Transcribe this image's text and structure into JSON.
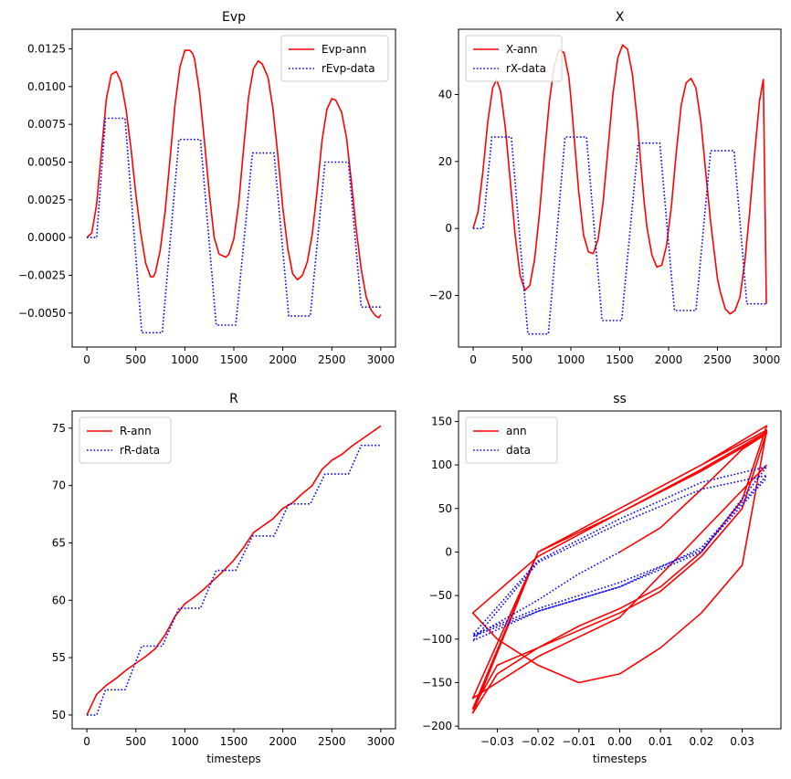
{
  "chart_data": [
    {
      "type": "line",
      "title": "Evp",
      "xlabel": "",
      "ylabel": "",
      "xlim": [
        -150,
        3150
      ],
      "ylim": [
        -0.00725,
        0.0138
      ],
      "xticks": [
        0,
        500,
        1000,
        1500,
        2000,
        2500,
        3000
      ],
      "xtick_labels": [
        "0",
        "500",
        "1000",
        "1500",
        "2000",
        "2500",
        "3000"
      ],
      "yticks": [
        -0.005,
        -0.0025,
        0.0,
        0.0025,
        0.005,
        0.0075,
        0.01,
        0.0125
      ],
      "ytick_labels": [
        "−0.0050",
        "−0.0025",
        "0.0000",
        "0.0025",
        "0.0050",
        "0.0075",
        "0.0100",
        "0.0125"
      ],
      "legend": "top-right",
      "series": [
        {
          "name": "Evp-ann",
          "color": "#ff0000",
          "style": "solid",
          "x": [
            0,
            50,
            100,
            150,
            200,
            250,
            300,
            350,
            400,
            450,
            500,
            550,
            600,
            650,
            680,
            700,
            750,
            800,
            850,
            900,
            950,
            1000,
            1050,
            1080,
            1100,
            1150,
            1200,
            1250,
            1300,
            1350,
            1420,
            1450,
            1500,
            1550,
            1600,
            1650,
            1700,
            1750,
            1790,
            1850,
            1900,
            1950,
            2000,
            2050,
            2100,
            2150,
            2200,
            2250,
            2300,
            2350,
            2400,
            2450,
            2500,
            2540,
            2600,
            2650,
            2700,
            2750,
            2800,
            2850,
            2900,
            2950,
            2980,
            3000
          ],
          "y": [
            0.0,
            0.0003,
            0.0022,
            0.0058,
            0.0092,
            0.0108,
            0.011,
            0.0103,
            0.0085,
            0.0059,
            0.0029,
            0.0003,
            -0.0017,
            -0.0026,
            -0.0026,
            -0.0023,
            -0.0008,
            0.0018,
            0.0053,
            0.0088,
            0.0113,
            0.0124,
            0.0124,
            0.0122,
            0.0118,
            0.0096,
            0.0064,
            0.0029,
            0.0,
            -0.0011,
            -0.0013,
            -0.0011,
            -0.0001,
            0.0023,
            0.0059,
            0.0093,
            0.0112,
            0.0117,
            0.0115,
            0.0106,
            0.0085,
            0.0054,
            0.002,
            -0.0007,
            -0.0024,
            -0.0028,
            -0.0025,
            -0.0016,
            0.0002,
            0.0031,
            0.0064,
            0.0085,
            0.0092,
            0.0091,
            0.0083,
            0.0066,
            0.0037,
            0.0005,
            -0.0021,
            -0.0039,
            -0.0048,
            -0.0052,
            -0.0053,
            -0.0051
          ]
        },
        {
          "name": "rEvp-data",
          "color": "#0000ff",
          "style": "dotted",
          "x": [
            0,
            80,
            100,
            190,
            370,
            390,
            560,
            580,
            750,
            770,
            940,
            960,
            1140,
            1160,
            1320,
            1340,
            1500,
            1520,
            1690,
            1710,
            1890,
            1910,
            2060,
            2080,
            2260,
            2280,
            2430,
            2450,
            2650,
            2670,
            2800,
            2820,
            3000
          ],
          "y": [
            0.0,
            0.0,
            0.0,
            0.0079,
            0.0079,
            0.0079,
            -0.0063,
            -0.0063,
            -0.0063,
            -0.0063,
            0.0065,
            0.0065,
            0.0065,
            0.0065,
            -0.0058,
            -0.0058,
            -0.0058,
            -0.0058,
            0.0056,
            0.0056,
            0.0056,
            0.0056,
            -0.0052,
            -0.0052,
            -0.0052,
            -0.0052,
            0.005,
            0.005,
            0.005,
            0.005,
            -0.0046,
            -0.0046,
            -0.0046
          ]
        }
      ]
    },
    {
      "type": "line",
      "title": "X",
      "xlabel": "",
      "ylabel": "",
      "xlim": [
        -150,
        3150
      ],
      "ylim": [
        -35.4,
        59.5
      ],
      "xticks": [
        0,
        500,
        1000,
        1500,
        2000,
        2500,
        3000
      ],
      "xtick_labels": [
        "0",
        "500",
        "1000",
        "1500",
        "2000",
        "2500",
        "3000"
      ],
      "yticks": [
        -20,
        0,
        20,
        40
      ],
      "ytick_labels": [
        "−20",
        "0",
        "20",
        "40"
      ],
      "legend": "top-left",
      "series": [
        {
          "name": "X-ann",
          "color": "#ff0000",
          "style": "solid",
          "x": [
            0,
            50,
            100,
            150,
            200,
            240,
            280,
            330,
            380,
            430,
            480,
            530,
            580,
            630,
            680,
            730,
            780,
            830,
            880,
            930,
            980,
            1000,
            1040,
            1080,
            1130,
            1180,
            1230,
            1280,
            1330,
            1380,
            1430,
            1480,
            1530,
            1580,
            1630,
            1680,
            1720,
            1750,
            1780,
            1830,
            1880,
            1930,
            1980,
            2030,
            2080,
            2130,
            2180,
            2230,
            2280,
            2330,
            2380,
            2430,
            2480,
            2500,
            2530,
            2580,
            2630,
            2680,
            2730,
            2780,
            2830,
            2880,
            2930,
            2970,
            3000
          ],
          "y": [
            0.0,
            5.0,
            17.0,
            32.0,
            42.0,
            44.5,
            41.0,
            30.0,
            14.0,
            -2.0,
            -14.0,
            -18.5,
            -17.0,
            -9.0,
            5.0,
            22.0,
            38.0,
            48.5,
            53.5,
            52.5,
            45.0,
            39.0,
            25.0,
            11.0,
            -2.0,
            -7.0,
            -7.5,
            -3.0,
            8.0,
            24.0,
            40.0,
            51.0,
            54.8,
            53.5,
            46.0,
            32.0,
            18.0,
            8.0,
            0.0,
            -8.0,
            -11.5,
            -11.0,
            -5.0,
            7.0,
            23.0,
            37.0,
            43.5,
            44.8,
            42.0,
            32.0,
            17.0,
            2.0,
            -10.0,
            -15.0,
            -19.0,
            -24.0,
            -25.5,
            -24.5,
            -20.5,
            -10.0,
            5.0,
            22.0,
            38.0,
            44.5,
            -22.5
          ]
        },
        {
          "name": "rX-data",
          "color": "#0000ff",
          "style": "dotted",
          "x": [
            0,
            80,
            100,
            190,
            370,
            390,
            560,
            580,
            750,
            770,
            940,
            960,
            1140,
            1160,
            1320,
            1340,
            1500,
            1520,
            1690,
            1710,
            1890,
            1910,
            2060,
            2080,
            2260,
            2280,
            2430,
            2450,
            2650,
            2670,
            2800,
            2820,
            3000
          ],
          "y": [
            0.0,
            0.0,
            0.0,
            27.3,
            27.3,
            27.3,
            -31.5,
            -31.5,
            -31.5,
            -31.5,
            27.3,
            27.3,
            27.3,
            27.3,
            -27.5,
            -27.5,
            -27.5,
            -27.5,
            25.5,
            25.5,
            25.5,
            25.5,
            -24.5,
            -24.5,
            -24.5,
            -24.5,
            23.2,
            23.2,
            23.2,
            23.2,
            -22.5,
            -22.5,
            -22.5
          ]
        }
      ]
    },
    {
      "type": "line",
      "title": "R",
      "xlabel": "timesteps",
      "ylabel": "",
      "xlim": [
        -150,
        3150
      ],
      "ylim": [
        48.8,
        76.5
      ],
      "xticks": [
        0,
        500,
        1000,
        1500,
        2000,
        2500,
        3000
      ],
      "xtick_labels": [
        "0",
        "500",
        "1000",
        "1500",
        "2000",
        "2500",
        "3000"
      ],
      "yticks": [
        50,
        55,
        60,
        65,
        70,
        75
      ],
      "ytick_labels": [
        "50",
        "55",
        "60",
        "65",
        "70",
        "75"
      ],
      "legend": "top-left",
      "series": [
        {
          "name": "R-ann",
          "color": "#ff0000",
          "style": "solid",
          "x": [
            0,
            100,
            200,
            300,
            400,
            500,
            600,
            700,
            800,
            900,
            1000,
            1100,
            1200,
            1300,
            1400,
            1500,
            1600,
            1700,
            1800,
            1900,
            2000,
            2100,
            2200,
            2300,
            2400,
            2500,
            2600,
            2700,
            2800,
            2900,
            3000
          ],
          "y": [
            50.0,
            51.8,
            52.6,
            53.2,
            53.9,
            54.5,
            55.1,
            55.8,
            57.0,
            58.6,
            59.7,
            60.3,
            61.0,
            61.8,
            62.6,
            63.5,
            64.6,
            65.9,
            66.5,
            67.1,
            68.0,
            68.5,
            69.3,
            70.0,
            71.4,
            72.2,
            72.7,
            73.4,
            74.0,
            74.6,
            75.2
          ]
        },
        {
          "name": "rR-data",
          "color": "#0000ff",
          "style": "dotted",
          "x": [
            0,
            80,
            100,
            190,
            370,
            390,
            560,
            580,
            750,
            770,
            940,
            960,
            1140,
            1160,
            1320,
            1340,
            1500,
            1520,
            1690,
            1710,
            1890,
            1910,
            2060,
            2080,
            2260,
            2280,
            2430,
            2450,
            2650,
            2670,
            2800,
            2820,
            3000
          ],
          "y": [
            50.0,
            50.0,
            50.0,
            52.2,
            52.2,
            52.2,
            56.0,
            56.0,
            56.0,
            56.0,
            59.3,
            59.3,
            59.3,
            59.3,
            62.6,
            62.6,
            62.6,
            62.6,
            65.6,
            65.6,
            65.6,
            65.6,
            68.4,
            68.4,
            68.4,
            68.4,
            71.0,
            71.0,
            71.0,
            71.0,
            73.5,
            73.5,
            73.5
          ]
        }
      ]
    },
    {
      "type": "line",
      "title": "ss",
      "xlabel": "timesteps",
      "ylabel": "",
      "xlim": [
        -0.0395,
        0.0395
      ],
      "ylim": [
        -203,
        162
      ],
      "xticks": [
        -0.03,
        -0.02,
        -0.01,
        0.0,
        0.01,
        0.02,
        0.03
      ],
      "xtick_labels": [
        "−0.03",
        "−0.02",
        "−0.01",
        "0.00",
        "0.01",
        "0.02",
        "0.03"
      ],
      "yticks": [
        -200,
        -150,
        -100,
        -50,
        0,
        50,
        100,
        150
      ],
      "ytick_labels": [
        "−200",
        "−150",
        "−100",
        "−50",
        "0",
        "50",
        "100",
        "150"
      ],
      "legend": "top-left",
      "series": [
        {
          "name": "ann",
          "color": "#ff0000",
          "style": "solid",
          "x": [
            0.0,
            0.01,
            0.02,
            0.03,
            0.036,
            0.02,
            0.0,
            -0.02,
            -0.036,
            -0.03,
            -0.02,
            -0.01,
            0.0,
            0.01,
            0.02,
            0.03,
            0.036,
            0.02,
            0.0,
            -0.02,
            -0.036,
            -0.03,
            -0.02,
            -0.01,
            0.0,
            0.01,
            0.02,
            0.03,
            0.036,
            0.02,
            0.0,
            -0.02,
            -0.036,
            -0.03,
            -0.02,
            -0.01,
            0.0,
            0.01,
            0.02,
            0.03,
            0.036,
            0.02,
            0.0,
            -0.02,
            -0.036,
            -0.02,
            0.0,
            0.036
          ],
          "y": [
            0.0,
            28.0,
            72.0,
            118.0,
            136.0,
            93.0,
            45.0,
            -5.0,
            -70.0,
            -100.0,
            -130.0,
            -150.0,
            -140.0,
            -110.0,
            -70.0,
            -15.0,
            140.0,
            100.0,
            50.0,
            0.0,
            -185.0,
            -140.0,
            -110.0,
            -85.0,
            -65.0,
            -40.0,
            0.0,
            60.0,
            145.0,
            100.0,
            50.0,
            0.0,
            -180.0,
            -130.0,
            -110.0,
            -90.0,
            -70.0,
            -45.0,
            -5.0,
            50.0,
            138.0,
            95.0,
            45.0,
            0.0,
            -168.0,
            -120.0,
            -75.0,
            100.0
          ]
        },
        {
          "name": "data",
          "color": "#0000ff",
          "style": "dotted",
          "x": [
            0.0,
            -0.01,
            -0.02,
            -0.03,
            -0.036,
            -0.02,
            0.0,
            0.02,
            0.036,
            0.02,
            0.0,
            -0.02,
            -0.036,
            -0.02,
            0.0,
            0.02,
            0.036,
            0.02,
            0.0,
            -0.02,
            -0.036,
            -0.02,
            0.0,
            0.02,
            0.036
          ],
          "y": [
            0.0,
            -25.0,
            -55.0,
            -82.0,
            -97.0,
            -68.0,
            -40.0,
            5.0,
            88.0,
            72.0,
            33.0,
            -12.0,
            -102.0,
            -68.0,
            -40.0,
            0.0,
            98.0,
            80.0,
            38.0,
            -10.0,
            -95.0,
            -65.0,
            -35.0,
            2.0,
            85.0
          ]
        }
      ]
    }
  ]
}
